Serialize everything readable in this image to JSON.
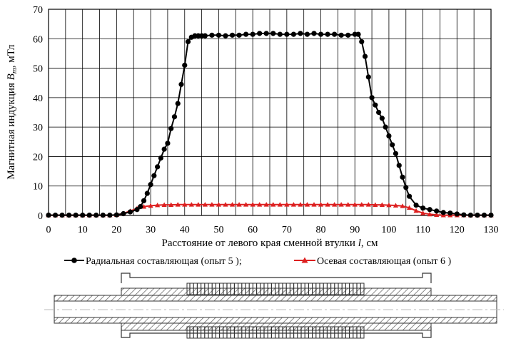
{
  "chart_data": {
    "type": "line",
    "xlabel_prefix": "Расстояние от левого края сменной втулки ",
    "xlabel_var": "l",
    "xlabel_unit": ", см",
    "ylabel_prefix": "Магнитная индукция ",
    "ylabel_var": "B",
    "ylabel_sub": "m",
    "ylabel_unit": ", мТл",
    "xlim": [
      0,
      130
    ],
    "ylim": [
      0,
      70
    ],
    "xticks": [
      0,
      10,
      20,
      30,
      40,
      50,
      60,
      70,
      80,
      90,
      100,
      110,
      120,
      130
    ],
    "yticks": [
      0,
      10,
      20,
      30,
      40,
      50,
      60,
      70
    ],
    "grid": true,
    "legend_position": "bottom",
    "series": [
      {
        "name": "Радиальная составляющая (опыт 5 );",
        "color": "#000000",
        "marker": "circle",
        "x": [
          0,
          2,
          4,
          6,
          8,
          10,
          12,
          14,
          16,
          18,
          20,
          22,
          24,
          26,
          27,
          28,
          29,
          30,
          31,
          32,
          33,
          34,
          35,
          36,
          37,
          38,
          39,
          40,
          41,
          42,
          43,
          44,
          45,
          46,
          48,
          50,
          52,
          54,
          56,
          58,
          60,
          62,
          64,
          66,
          68,
          70,
          72,
          74,
          76,
          78,
          80,
          82,
          84,
          86,
          88,
          90,
          91,
          92,
          93,
          94,
          95,
          96,
          97,
          98,
          99,
          100,
          101,
          102,
          103,
          104,
          105,
          106,
          108,
          110,
          112,
          114,
          116,
          118,
          120,
          122,
          124,
          126,
          128,
          130
        ],
        "values": [
          0.1,
          0.1,
          0.1,
          0.1,
          0.1,
          0.1,
          0.1,
          0.1,
          0.1,
          0.1,
          0.2,
          0.6,
          1.2,
          2.0,
          3.0,
          5.0,
          7.5,
          10.5,
          13.5,
          16.5,
          19.5,
          22.5,
          24.5,
          29.5,
          33.5,
          38.0,
          44.5,
          51.0,
          59.0,
          60.5,
          61.0,
          61.0,
          61.0,
          61.0,
          61.2,
          61.2,
          61.0,
          61.2,
          61.2,
          61.5,
          61.5,
          61.8,
          61.8,
          61.8,
          61.5,
          61.5,
          61.5,
          61.8,
          61.5,
          61.8,
          61.5,
          61.5,
          61.5,
          61.2,
          61.2,
          61.5,
          61.5,
          59.0,
          54.0,
          47.0,
          40.0,
          37.5,
          35.0,
          33.0,
          30.0,
          27.0,
          24.0,
          21.0,
          17.0,
          13.0,
          9.5,
          6.5,
          3.5,
          2.5,
          2.0,
          1.5,
          1.0,
          0.8,
          0.5,
          0.2,
          0.1,
          0.1,
          0.1,
          0.1
        ]
      },
      {
        "name": "Осевая составляющая (опыт 6 )",
        "color": "#dd2020",
        "marker": "triangle",
        "x": [
          0,
          2,
          4,
          6,
          8,
          10,
          12,
          14,
          16,
          18,
          20,
          22,
          24,
          26,
          28,
          30,
          32,
          34,
          36,
          38,
          40,
          42,
          44,
          46,
          48,
          50,
          52,
          54,
          56,
          58,
          60,
          62,
          64,
          66,
          68,
          70,
          72,
          74,
          76,
          78,
          80,
          82,
          84,
          86,
          88,
          90,
          92,
          94,
          96,
          98,
          100,
          102,
          104,
          106,
          108,
          110,
          112,
          114,
          116,
          118,
          120,
          122,
          124,
          126,
          128,
          130
        ],
        "values": [
          0.1,
          0.1,
          0.1,
          0.1,
          0.1,
          0.1,
          0.1,
          0.1,
          0.1,
          0.1,
          0.2,
          0.7,
          1.5,
          2.4,
          3.0,
          3.3,
          3.5,
          3.6,
          3.6,
          3.7,
          3.7,
          3.7,
          3.7,
          3.7,
          3.7,
          3.7,
          3.7,
          3.7,
          3.7,
          3.7,
          3.7,
          3.7,
          3.7,
          3.7,
          3.7,
          3.7,
          3.7,
          3.7,
          3.7,
          3.7,
          3.7,
          3.7,
          3.7,
          3.7,
          3.7,
          3.7,
          3.7,
          3.7,
          3.6,
          3.6,
          3.5,
          3.4,
          3.2,
          2.6,
          1.6,
          0.8,
          0.4,
          0.2,
          0.1,
          0.1,
          0.1,
          0.1,
          0.1,
          0.1,
          0.1,
          0.1
        ]
      }
    ]
  },
  "colors": {
    "axis": "#000000",
    "grid": "#000000",
    "diagram_hatch": "#555555",
    "centerline": "#bbbbbb"
  }
}
